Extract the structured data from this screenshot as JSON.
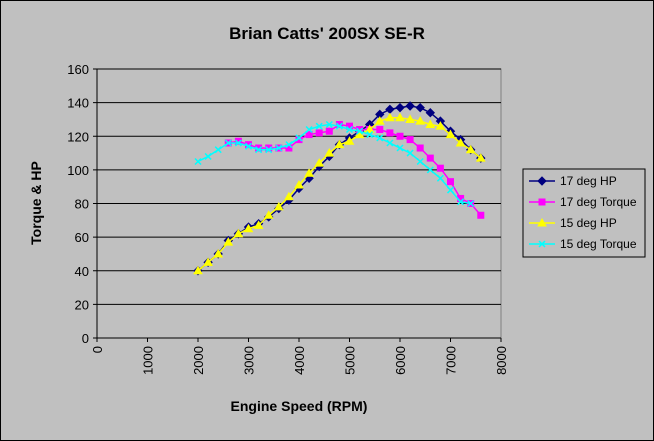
{
  "chart_data": {
    "type": "line",
    "title": "Brian Catts' 200SX SE-R",
    "xlabel": "Engine Speed (RPM)",
    "ylabel": "Torque & HP",
    "xlim": [
      0,
      8000
    ],
    "ylim": [
      0,
      160
    ],
    "x_ticks": [
      "0",
      "1000",
      "2000",
      "3000",
      "4000",
      "5000",
      "6000",
      "7000",
      "8000"
    ],
    "y_ticks": [
      "0",
      "20",
      "40",
      "60",
      "80",
      "100",
      "120",
      "140",
      "160"
    ],
    "grid": true,
    "legend_position": "right",
    "background": "#c0c0c0",
    "plot_background": "#c0c0c0",
    "series": [
      {
        "name": "17 deg HP",
        "color": "#000080",
        "marker": "diamond",
        "points": [
          [
            2000,
            40
          ],
          [
            2200,
            45
          ],
          [
            2400,
            50
          ],
          [
            2600,
            58
          ],
          [
            2800,
            62
          ],
          [
            3000,
            66
          ],
          [
            3200,
            68
          ],
          [
            3400,
            72
          ],
          [
            3600,
            77
          ],
          [
            3800,
            82
          ],
          [
            4000,
            89
          ],
          [
            4200,
            95
          ],
          [
            4400,
            102
          ],
          [
            4600,
            108
          ],
          [
            4800,
            115
          ],
          [
            5000,
            119
          ],
          [
            5200,
            123
          ],
          [
            5400,
            127
          ],
          [
            5600,
            133
          ],
          [
            5800,
            136
          ],
          [
            6000,
            137
          ],
          [
            6200,
            138
          ],
          [
            6400,
            137
          ],
          [
            6600,
            134
          ],
          [
            6800,
            129
          ],
          [
            7000,
            123
          ],
          [
            7200,
            118
          ],
          [
            7400,
            112
          ],
          [
            7600,
            107
          ]
        ]
      },
      {
        "name": "17 deg Torque",
        "color": "#ff00ff",
        "marker": "square",
        "points": [
          [
            2600,
            116
          ],
          [
            2800,
            117
          ],
          [
            3000,
            115
          ],
          [
            3200,
            113
          ],
          [
            3400,
            113
          ],
          [
            3600,
            113
          ],
          [
            3800,
            113
          ],
          [
            4000,
            118
          ],
          [
            4200,
            121
          ],
          [
            4400,
            122
          ],
          [
            4600,
            123
          ],
          [
            4800,
            127
          ],
          [
            5000,
            126
          ],
          [
            5200,
            124
          ],
          [
            5400,
            124
          ],
          [
            5600,
            124
          ],
          [
            5800,
            122
          ],
          [
            6000,
            120
          ],
          [
            6200,
            118
          ],
          [
            6400,
            113
          ],
          [
            6600,
            107
          ],
          [
            6800,
            101
          ],
          [
            7000,
            93
          ],
          [
            7200,
            83
          ],
          [
            7400,
            80
          ],
          [
            7600,
            73
          ]
        ]
      },
      {
        "name": "15 deg HP",
        "color": "#ffff00",
        "marker": "triangle",
        "points": [
          [
            2000,
            40
          ],
          [
            2200,
            45
          ],
          [
            2400,
            50
          ],
          [
            2600,
            57
          ],
          [
            2800,
            62
          ],
          [
            3000,
            65
          ],
          [
            3200,
            67
          ],
          [
            3400,
            73
          ],
          [
            3600,
            78
          ],
          [
            3800,
            84
          ],
          [
            4000,
            91
          ],
          [
            4200,
            98
          ],
          [
            4400,
            104
          ],
          [
            4600,
            110
          ],
          [
            4800,
            115
          ],
          [
            5000,
            117
          ],
          [
            5200,
            121
          ],
          [
            5400,
            124
          ],
          [
            5600,
            129
          ],
          [
            5800,
            131
          ],
          [
            6000,
            131
          ],
          [
            6200,
            130
          ],
          [
            6400,
            129
          ],
          [
            6600,
            127
          ],
          [
            6800,
            126
          ],
          [
            7000,
            121
          ],
          [
            7200,
            116
          ],
          [
            7400,
            112
          ],
          [
            7600,
            107
          ]
        ]
      },
      {
        "name": "15 deg Torque",
        "color": "#00ffff",
        "marker": "x",
        "points": [
          [
            2000,
            105
          ],
          [
            2200,
            108
          ],
          [
            2400,
            112
          ],
          [
            2600,
            116
          ],
          [
            2800,
            116
          ],
          [
            3000,
            114
          ],
          [
            3200,
            112
          ],
          [
            3400,
            112
          ],
          [
            3600,
            113
          ],
          [
            3800,
            115
          ],
          [
            4000,
            119
          ],
          [
            4200,
            124
          ],
          [
            4400,
            126
          ],
          [
            4600,
            127
          ],
          [
            4800,
            126
          ],
          [
            5000,
            124
          ],
          [
            5200,
            123
          ],
          [
            5400,
            121
          ],
          [
            5600,
            119
          ],
          [
            5800,
            116
          ],
          [
            6000,
            113
          ],
          [
            6200,
            110
          ],
          [
            6400,
            105
          ],
          [
            6600,
            100
          ],
          [
            6800,
            95
          ],
          [
            7000,
            88
          ],
          [
            7200,
            81
          ],
          [
            7400,
            80
          ]
        ]
      }
    ]
  }
}
